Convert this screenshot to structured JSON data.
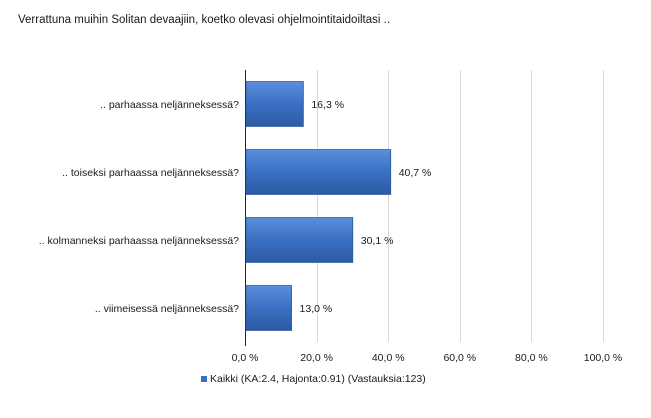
{
  "chart_data": {
    "type": "bar",
    "orientation": "horizontal",
    "title": "Verrattuna muihin Solitan devaajiin, koetko olevasi ohjelmointitaidoiltasi ..",
    "categories": [
      ".. parhaassa neljänneksessä?",
      ".. toiseksi parhaassa neljänneksessä?",
      ".. kolmanneksi parhaassa neljänneksessä?",
      ".. viimeisessä neljänneksessä?"
    ],
    "series": [
      {
        "name": "Kaikki (KA:2.4, Hajonta:0.91) (Vastauksia:123)",
        "values": [
          16.3,
          40.7,
          30.1,
          13.0
        ],
        "value_labels": [
          "16,3 %",
          "40,7 %",
          "30,1 %",
          "13,0 %"
        ],
        "color": "#3a6fc4"
      }
    ],
    "xlim": [
      0,
      100
    ],
    "x_ticks": [
      0,
      20,
      40,
      60,
      80,
      100
    ],
    "x_tick_labels": [
      "0,0 %",
      "20,0 %",
      "40,0 %",
      "60,0 %",
      "80,0 %",
      "100,0 %"
    ],
    "grid": true,
    "legend_placement": "bottom"
  }
}
